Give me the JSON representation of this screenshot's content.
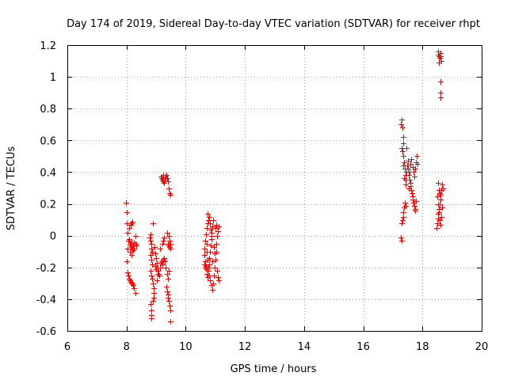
{
  "chart_data": {
    "type": "scatter",
    "title": "Day 174 of 2019, Sidereal Day-to-day VTEC variation (SDTVAR) for receiver rhpt",
    "xlabel": "GPS time / hours",
    "ylabel": "SDTVAR / TECUs",
    "xlim": [
      6,
      20
    ],
    "ylim": [
      -0.6,
      1.2
    ],
    "xticks": [
      6,
      8,
      10,
      12,
      14,
      16,
      18,
      20
    ],
    "xtick_labels": [
      "6",
      "8",
      "10",
      "12",
      "14",
      "16",
      "18",
      "20"
    ],
    "yticks": [
      -0.6,
      -0.4,
      -0.2,
      0,
      0.2,
      0.4,
      0.6,
      0.8,
      1,
      1.2
    ],
    "ytick_labels": [
      "-0.6",
      "-0.4",
      "-0.2",
      "0",
      "0.2",
      "0.4",
      "0.6",
      "0.8",
      "1",
      "1.2"
    ],
    "grid": true,
    "marker": "+",
    "marker_color": "#ff0000",
    "series": [
      {
        "name": "SDTVAR",
        "points": [
          [
            7.98,
            0.21
          ],
          [
            8.0,
            0.15
          ],
          [
            8.02,
            0.08
          ],
          [
            8.04,
            0.02
          ],
          [
            8.06,
            -0.03
          ],
          [
            8.03,
            -0.08
          ],
          [
            8.01,
            -0.16
          ],
          [
            8.03,
            -0.23
          ],
          [
            8.05,
            -0.25
          ],
          [
            8.08,
            -0.27
          ],
          [
            8.11,
            -0.28
          ],
          [
            8.14,
            -0.29
          ],
          [
            8.17,
            -0.3
          ],
          [
            8.2,
            -0.3
          ],
          [
            8.23,
            -0.31
          ],
          [
            8.26,
            -0.33
          ],
          [
            8.29,
            -0.36
          ],
          [
            8.1,
            0.05
          ],
          [
            8.13,
            0.07
          ],
          [
            8.16,
            0.08
          ],
          [
            8.19,
            0.09
          ],
          [
            8.11,
            -0.05
          ],
          [
            8.14,
            -0.06
          ],
          [
            8.17,
            -0.07
          ],
          [
            8.2,
            -0.08
          ],
          [
            8.23,
            -0.06
          ],
          [
            8.26,
            -0.04
          ],
          [
            8.29,
            -0.05
          ],
          [
            8.32,
            -0.06
          ],
          [
            8.12,
            -0.1
          ],
          [
            8.16,
            -0.12
          ],
          [
            8.21,
            -0.09
          ],
          [
            8.25,
            -0.08
          ],
          [
            8.3,
            0.0
          ],
          [
            8.08,
            -0.02
          ],
          [
            8.18,
            -0.04
          ],
          [
            8.78,
            -0.01
          ],
          [
            8.8,
            0.01
          ],
          [
            8.82,
            -0.03
          ],
          [
            8.85,
            -0.05
          ],
          [
            8.83,
            -0.08
          ],
          [
            8.86,
            -0.1
          ],
          [
            8.81,
            -0.12
          ],
          [
            8.84,
            -0.15
          ],
          [
            8.87,
            -0.18
          ],
          [
            8.8,
            -0.22
          ],
          [
            8.83,
            -0.25
          ],
          [
            8.86,
            -0.27
          ],
          [
            8.89,
            -0.3
          ],
          [
            8.92,
            -0.33
          ],
          [
            8.9,
            0.08
          ],
          [
            8.93,
            -0.36
          ],
          [
            8.91,
            -0.39
          ],
          [
            8.89,
            -0.41
          ],
          [
            8.82,
            -0.43
          ],
          [
            8.84,
            -0.47
          ],
          [
            8.83,
            -0.5
          ],
          [
            8.85,
            -0.52
          ],
          [
            8.95,
            -0.07
          ],
          [
            8.98,
            -0.11
          ],
          [
            9.0,
            -0.14
          ],
          [
            9.02,
            -0.17
          ],
          [
            9.04,
            -0.2
          ],
          [
            9.06,
            -0.22
          ],
          [
            9.08,
            -0.24
          ],
          [
            9.1,
            -0.25
          ],
          [
            8.97,
            -0.19
          ],
          [
            9.01,
            -0.21
          ],
          [
            9.05,
            -0.24
          ],
          [
            9.12,
            -0.2
          ],
          [
            9.15,
            -0.17
          ],
          [
            9.18,
            -0.16
          ],
          [
            9.21,
            -0.18
          ],
          [
            9.24,
            -0.15
          ],
          [
            9.27,
            -0.14
          ],
          [
            9.3,
            -0.16
          ],
          [
            9.33,
            -0.2
          ],
          [
            9.36,
            -0.24
          ],
          [
            9.39,
            -0.27
          ],
          [
            9.42,
            -0.22
          ],
          [
            9.2,
            -0.05
          ],
          [
            9.23,
            -0.03
          ],
          [
            9.26,
            -0.01
          ],
          [
            9.14,
            -0.08
          ],
          [
            9.02,
            -0.28
          ],
          [
            9.15,
            0.37
          ],
          [
            9.18,
            0.36
          ],
          [
            9.21,
            0.35
          ],
          [
            9.24,
            0.34
          ],
          [
            9.27,
            0.33
          ],
          [
            9.3,
            0.35
          ],
          [
            9.33,
            0.37
          ],
          [
            9.36,
            0.36
          ],
          [
            9.39,
            0.34
          ],
          [
            9.42,
            0.3
          ],
          [
            9.45,
            0.27
          ],
          [
            9.48,
            0.26
          ],
          [
            9.25,
            0.38
          ],
          [
            9.35,
            0.38
          ],
          [
            9.35,
            -0.32
          ],
          [
            9.37,
            -0.35
          ],
          [
            9.39,
            -0.37
          ],
          [
            9.41,
            -0.39
          ],
          [
            9.43,
            -0.41
          ],
          [
            9.45,
            -0.44
          ],
          [
            9.47,
            -0.47
          ],
          [
            9.49,
            -0.54
          ],
          [
            9.4,
            -0.05
          ],
          [
            9.43,
            -0.06
          ],
          [
            9.46,
            -0.03
          ],
          [
            9.49,
            -0.05
          ],
          [
            9.42,
            0.0
          ],
          [
            9.45,
            -0.07
          ],
          [
            9.48,
            -0.08
          ],
          [
            9.38,
            0.02
          ],
          [
            10.62,
            -0.08
          ],
          [
            10.64,
            -0.12
          ],
          [
            10.66,
            -0.16
          ],
          [
            10.68,
            -0.19
          ],
          [
            10.7,
            -0.21
          ],
          [
            10.72,
            -0.24
          ],
          [
            10.74,
            -0.26
          ],
          [
            10.76,
            -0.22
          ],
          [
            10.78,
            -0.18
          ],
          [
            10.8,
            -0.14
          ],
          [
            10.82,
            -0.1
          ],
          [
            10.84,
            -0.06
          ],
          [
            10.86,
            -0.02
          ],
          [
            10.88,
            0.02
          ],
          [
            10.9,
            0.06
          ],
          [
            10.92,
            0.1
          ],
          [
            10.75,
            0.14
          ],
          [
            10.78,
            0.12
          ],
          [
            10.81,
            0.08
          ],
          [
            10.84,
            0.04
          ],
          [
            10.87,
            0.0
          ],
          [
            10.65,
            -0.03
          ],
          [
            10.68,
            0.01
          ],
          [
            10.71,
            0.05
          ],
          [
            10.73,
            0.08
          ],
          [
            10.76,
            0.1
          ],
          [
            10.7,
            -0.05
          ],
          [
            10.72,
            -0.1
          ],
          [
            10.74,
            -0.15
          ],
          [
            10.77,
            -0.2
          ],
          [
            10.8,
            -0.25
          ],
          [
            10.83,
            -0.28
          ],
          [
            10.86,
            -0.31
          ],
          [
            10.89,
            -0.34
          ],
          [
            10.92,
            -0.3
          ],
          [
            10.95,
            -0.25
          ],
          [
            10.98,
            -0.2
          ],
          [
            11.0,
            -0.15
          ],
          [
            11.02,
            -0.1
          ],
          [
            11.04,
            -0.05
          ],
          [
            11.06,
            0.0
          ],
          [
            11.08,
            0.03
          ],
          [
            11.1,
            0.06
          ],
          [
            11.05,
            -0.22
          ],
          [
            11.08,
            -0.26
          ],
          [
            11.11,
            -0.28
          ],
          [
            11.0,
            0.05
          ],
          [
            11.03,
            0.07
          ],
          [
            10.94,
            -0.07
          ],
          [
            10.97,
            -0.11
          ],
          [
            10.91,
            -0.16
          ],
          [
            10.66,
            -0.2
          ],
          [
            10.63,
            -0.18
          ],
          [
            17.27,
            -0.01
          ],
          [
            17.29,
            -0.03
          ],
          [
            17.3,
            0.08
          ],
          [
            17.32,
            0.1
          ],
          [
            17.34,
            0.12
          ],
          [
            17.36,
            0.15
          ],
          [
            17.38,
            0.18
          ],
          [
            17.4,
            0.21
          ],
          [
            17.42,
            0.19
          ],
          [
            17.28,
            0.7
          ],
          [
            17.3,
            0.73
          ],
          [
            17.32,
            0.68
          ],
          [
            17.34,
            0.62
          ],
          [
            17.36,
            0.58
          ],
          [
            17.3,
            0.55
          ],
          [
            17.33,
            0.53
          ],
          [
            17.36,
            0.5
          ],
          [
            17.38,
            0.46
          ],
          [
            17.4,
            0.42
          ],
          [
            17.42,
            0.38
          ],
          [
            17.44,
            0.35
          ],
          [
            17.46,
            0.4
          ],
          [
            17.48,
            0.44
          ],
          [
            17.5,
            0.47
          ],
          [
            17.52,
            0.42
          ],
          [
            17.54,
            0.38
          ],
          [
            17.56,
            0.35
          ],
          [
            17.58,
            0.33
          ],
          [
            17.6,
            0.31
          ],
          [
            17.62,
            0.29
          ],
          [
            17.64,
            0.27
          ],
          [
            17.66,
            0.25
          ],
          [
            17.68,
            0.23
          ],
          [
            17.7,
            0.21
          ],
          [
            17.72,
            0.19
          ],
          [
            17.74,
            0.17
          ],
          [
            17.76,
            0.16
          ],
          [
            17.78,
            0.22
          ],
          [
            17.6,
            0.45
          ],
          [
            17.63,
            0.48
          ],
          [
            17.66,
            0.43
          ],
          [
            17.69,
            0.4
          ],
          [
            17.72,
            0.37
          ],
          [
            17.75,
            0.42
          ],
          [
            17.78,
            0.46
          ],
          [
            17.81,
            0.5
          ],
          [
            17.84,
            0.45
          ],
          [
            17.55,
            0.3
          ],
          [
            17.45,
            0.55
          ],
          [
            17.35,
            0.44
          ],
          [
            17.39,
            0.36
          ],
          [
            17.43,
            0.32
          ],
          [
            17.57,
            0.4
          ],
          [
            18.48,
            0.05
          ],
          [
            18.5,
            0.08
          ],
          [
            18.52,
            0.11
          ],
          [
            18.54,
            0.14
          ],
          [
            18.56,
            0.17
          ],
          [
            18.58,
            0.2
          ],
          [
            18.6,
            0.23
          ],
          [
            18.62,
            0.26
          ],
          [
            18.64,
            0.29
          ],
          [
            18.66,
            0.32
          ],
          [
            18.68,
            0.3
          ],
          [
            18.5,
            0.25
          ],
          [
            18.53,
            0.2
          ],
          [
            18.56,
            0.15
          ],
          [
            18.59,
            0.1
          ],
          [
            18.61,
            0.07
          ],
          [
            18.63,
            0.12
          ],
          [
            18.65,
            0.18
          ],
          [
            18.52,
            0.33
          ],
          [
            18.55,
            0.29
          ],
          [
            18.58,
            0.27
          ],
          [
            18.6,
            0.97
          ],
          [
            18.6,
            0.9
          ],
          [
            18.62,
            0.87
          ],
          [
            18.52,
            1.16
          ],
          [
            18.54,
            1.14
          ],
          [
            18.56,
            1.13
          ],
          [
            18.58,
            1.12
          ],
          [
            18.6,
            1.15
          ],
          [
            18.62,
            1.13
          ],
          [
            18.64,
            1.1
          ],
          [
            18.55,
            1.09
          ]
        ]
      }
    ]
  }
}
